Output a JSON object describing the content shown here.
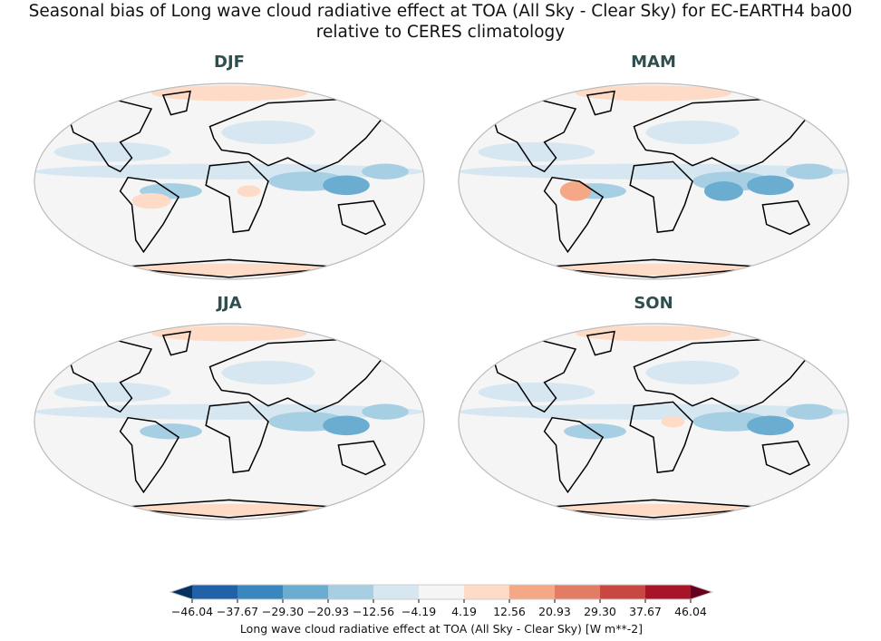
{
  "figure": {
    "title_line1": "Seasonal bias of Long wave cloud radiative effect at TOA (All Sky - Clear Sky) for EC-EARTH4 ba00",
    "title_line2": "relative to CERES climatology"
  },
  "panels": [
    {
      "label": "DJF"
    },
    {
      "label": "MAM"
    },
    {
      "label": "JJA"
    },
    {
      "label": "SON"
    }
  ],
  "colorbar": {
    "label": "Long wave cloud radiative effect at TOA (All Sky - Clear Sky) [W m**-2]",
    "ticks": [
      "−46.04",
      "−37.67",
      "−29.30",
      "−20.93",
      "−12.56",
      "−4.19",
      "4.19",
      "12.56",
      "20.93",
      "29.30",
      "37.67",
      "46.04"
    ],
    "colors": [
      "#2161a8",
      "#3a86be",
      "#6bacd1",
      "#a7cfe4",
      "#d6e7f1",
      "#f5f5f5",
      "#fddbc7",
      "#f4a886",
      "#e27c65",
      "#c94741",
      "#a81529"
    ],
    "extend_low_color": "#053061",
    "extend_high_color": "#67001f"
  }
}
